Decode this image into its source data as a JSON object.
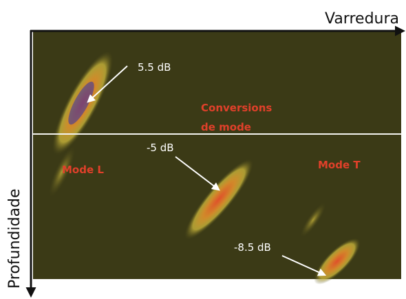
{
  "figure": {
    "axes": {
      "horizontal": "Varredura",
      "vertical": "Profundidade"
    },
    "annotations": {
      "peak_l": "5.5 dB",
      "conversion": "-5 dB",
      "peak_t": "-8.5 dB"
    },
    "labels": {
      "conversion_line1": "Conversions",
      "conversion_line2": "de mode",
      "mode_l": "Mode L",
      "mode_t": "Mode T"
    }
  }
}
